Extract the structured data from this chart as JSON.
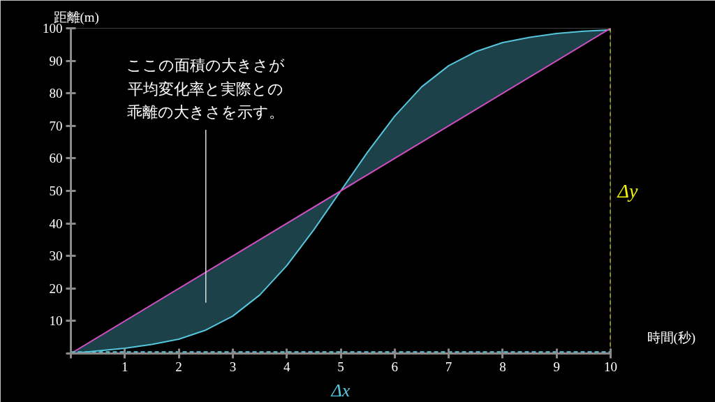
{
  "chart_data": {
    "type": "line",
    "xlabel": "時間(秒)",
    "ylabel": "距離(m)",
    "xlim": [
      0,
      10
    ],
    "ylim": [
      0,
      100
    ],
    "xticks": [
      {
        "value": 0,
        "label": null
      },
      1,
      2,
      3,
      4,
      5,
      6,
      7,
      8,
      9,
      10
    ],
    "yticks": [
      {
        "value": 0,
        "label": null
      },
      10,
      20,
      30,
      40,
      50,
      60,
      70,
      80,
      90,
      100
    ],
    "grid": false,
    "series": [
      {
        "color": "#56c6dc",
        "x": [
          0,
          0.5,
          1,
          1.5,
          2,
          2.5,
          3,
          3.5,
          4,
          4.5,
          5,
          5.5,
          6,
          6.5,
          7,
          7.5,
          8,
          8.5,
          9,
          9.5,
          10
        ],
        "values": [
          0,
          0.8,
          1.6,
          2.8,
          4.4,
          7.2,
          11.5,
          18,
          27,
          38,
          50,
          62,
          73,
          82,
          88.5,
          92.8,
          95.6,
          97.2,
          98.4,
          99.1,
          99.5
        ],
        "lower": [
          0,
          5,
          10,
          15,
          20,
          25,
          30,
          35,
          40,
          45,
          50,
          55,
          60,
          65,
          70,
          75,
          80,
          85,
          90,
          95,
          100
        ],
        "upper": [
          0,
          0.8,
          1.6,
          2.8,
          4.4,
          7.2,
          11.5,
          18,
          27,
          38,
          50,
          62,
          73,
          82,
          88.5,
          92.8,
          95.6,
          97.2,
          98.4,
          99.1,
          99.5
        ]
      },
      {
        "color": "#d24fc4",
        "x": [
          0,
          10
        ],
        "values": [
          0,
          100
        ]
      }
    ],
    "ref_lines": [
      {
        "axis": "y",
        "value": 0.5,
        "label": "Δx",
        "color": "#56c6dc",
        "line_style": "dashed"
      },
      {
        "axis": "x",
        "value": 10,
        "label": "Δy",
        "color": "#f0f000",
        "line_style": "dashed"
      }
    ],
    "annotations": [
      "ここの面積の大きさが平均変化率と実際との乖離の大きさを示す。"
    ]
  }
}
